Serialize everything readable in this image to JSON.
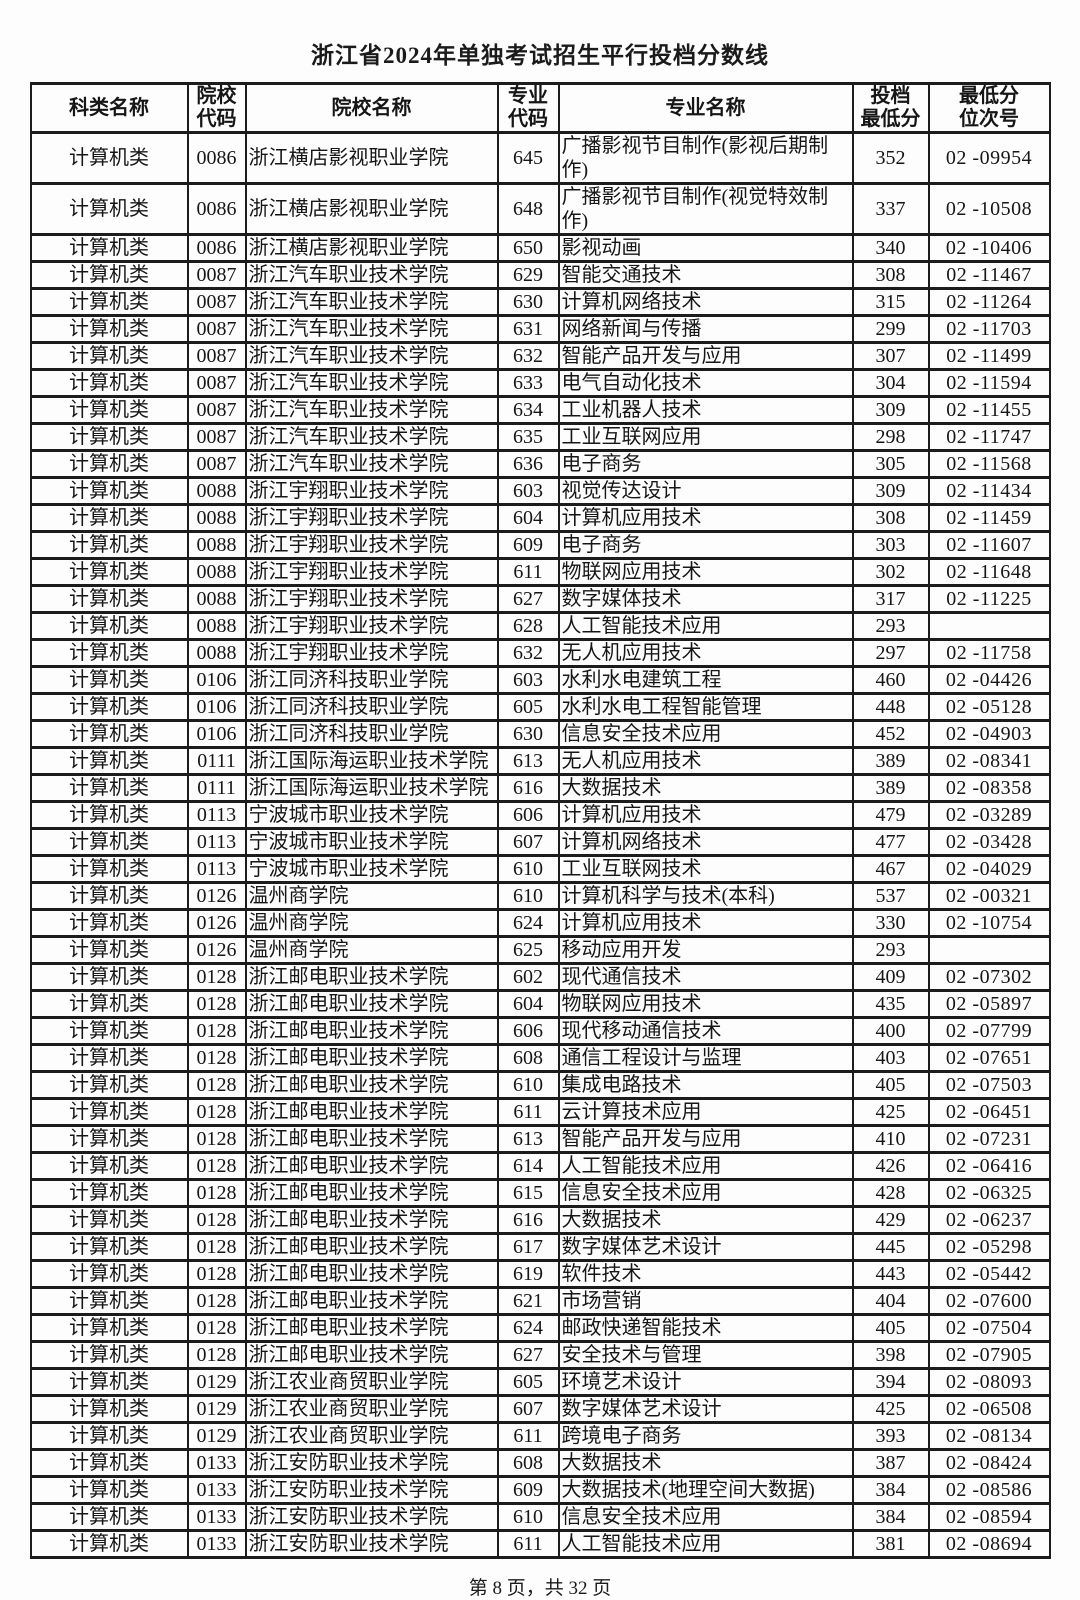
{
  "page": {
    "title": "浙江省2024年单独考试招生平行投档分数线",
    "footer": "第 8 页，共 32 页"
  },
  "table": {
    "headers": [
      "科类名称",
      "院校\n代码",
      "院校名称",
      "专业\n代码",
      "专业名称",
      "投档\n最低分",
      "最低分\n位次号"
    ],
    "rows": [
      [
        "计算机类",
        "0086",
        "浙江横店影视职业学院",
        "645",
        "广播影视节目制作(影视后期制作)",
        "352",
        "02 -09954"
      ],
      [
        "计算机类",
        "0086",
        "浙江横店影视职业学院",
        "648",
        "广播影视节目制作(视觉特效制作)",
        "337",
        "02 -10508"
      ],
      [
        "计算机类",
        "0086",
        "浙江横店影视职业学院",
        "650",
        "影视动画",
        "340",
        "02 -10406"
      ],
      [
        "计算机类",
        "0087",
        "浙江汽车职业技术学院",
        "629",
        "智能交通技术",
        "308",
        "02 -11467"
      ],
      [
        "计算机类",
        "0087",
        "浙江汽车职业技术学院",
        "630",
        "计算机网络技术",
        "315",
        "02 -11264"
      ],
      [
        "计算机类",
        "0087",
        "浙江汽车职业技术学院",
        "631",
        "网络新闻与传播",
        "299",
        "02 -11703"
      ],
      [
        "计算机类",
        "0087",
        "浙江汽车职业技术学院",
        "632",
        "智能产品开发与应用",
        "307",
        "02 -11499"
      ],
      [
        "计算机类",
        "0087",
        "浙江汽车职业技术学院",
        "633",
        "电气自动化技术",
        "304",
        "02 -11594"
      ],
      [
        "计算机类",
        "0087",
        "浙江汽车职业技术学院",
        "634",
        "工业机器人技术",
        "309",
        "02 -11455"
      ],
      [
        "计算机类",
        "0087",
        "浙江汽车职业技术学院",
        "635",
        "工业互联网应用",
        "298",
        "02 -11747"
      ],
      [
        "计算机类",
        "0087",
        "浙江汽车职业技术学院",
        "636",
        "电子商务",
        "305",
        "02 -11568"
      ],
      [
        "计算机类",
        "0088",
        "浙江宇翔职业技术学院",
        "603",
        "视觉传达设计",
        "309",
        "02 -11434"
      ],
      [
        "计算机类",
        "0088",
        "浙江宇翔职业技术学院",
        "604",
        "计算机应用技术",
        "308",
        "02 -11459"
      ],
      [
        "计算机类",
        "0088",
        "浙江宇翔职业技术学院",
        "609",
        "电子商务",
        "303",
        "02 -11607"
      ],
      [
        "计算机类",
        "0088",
        "浙江宇翔职业技术学院",
        "611",
        "物联网应用技术",
        "302",
        "02 -11648"
      ],
      [
        "计算机类",
        "0088",
        "浙江宇翔职业技术学院",
        "627",
        "数字媒体技术",
        "317",
        "02 -11225"
      ],
      [
        "计算机类",
        "0088",
        "浙江宇翔职业技术学院",
        "628",
        "人工智能技术应用",
        "293",
        ""
      ],
      [
        "计算机类",
        "0088",
        "浙江宇翔职业技术学院",
        "632",
        "无人机应用技术",
        "297",
        "02 -11758"
      ],
      [
        "计算机类",
        "0106",
        "浙江同济科技职业学院",
        "603",
        "水利水电建筑工程",
        "460",
        "02 -04426"
      ],
      [
        "计算机类",
        "0106",
        "浙江同济科技职业学院",
        "605",
        "水利水电工程智能管理",
        "448",
        "02 -05128"
      ],
      [
        "计算机类",
        "0106",
        "浙江同济科技职业学院",
        "630",
        "信息安全技术应用",
        "452",
        "02 -04903"
      ],
      [
        "计算机类",
        "0111",
        "浙江国际海运职业技术学院",
        "613",
        "无人机应用技术",
        "389",
        "02 -08341"
      ],
      [
        "计算机类",
        "0111",
        "浙江国际海运职业技术学院",
        "616",
        "大数据技术",
        "389",
        "02 -08358"
      ],
      [
        "计算机类",
        "0113",
        "宁波城市职业技术学院",
        "606",
        "计算机应用技术",
        "479",
        "02 -03289"
      ],
      [
        "计算机类",
        "0113",
        "宁波城市职业技术学院",
        "607",
        "计算机网络技术",
        "477",
        "02 -03428"
      ],
      [
        "计算机类",
        "0113",
        "宁波城市职业技术学院",
        "610",
        "工业互联网技术",
        "467",
        "02 -04029"
      ],
      [
        "计算机类",
        "0126",
        "温州商学院",
        "610",
        "计算机科学与技术(本科)",
        "537",
        "02 -00321"
      ],
      [
        "计算机类",
        "0126",
        "温州商学院",
        "624",
        "计算机应用技术",
        "330",
        "02 -10754"
      ],
      [
        "计算机类",
        "0126",
        "温州商学院",
        "625",
        "移动应用开发",
        "293",
        ""
      ],
      [
        "计算机类",
        "0128",
        "浙江邮电职业技术学院",
        "602",
        "现代通信技术",
        "409",
        "02 -07302"
      ],
      [
        "计算机类",
        "0128",
        "浙江邮电职业技术学院",
        "604",
        "物联网应用技术",
        "435",
        "02 -05897"
      ],
      [
        "计算机类",
        "0128",
        "浙江邮电职业技术学院",
        "606",
        "现代移动通信技术",
        "400",
        "02 -07799"
      ],
      [
        "计算机类",
        "0128",
        "浙江邮电职业技术学院",
        "608",
        "通信工程设计与监理",
        "403",
        "02 -07651"
      ],
      [
        "计算机类",
        "0128",
        "浙江邮电职业技术学院",
        "610",
        "集成电路技术",
        "405",
        "02 -07503"
      ],
      [
        "计算机类",
        "0128",
        "浙江邮电职业技术学院",
        "611",
        "云计算技术应用",
        "425",
        "02 -06451"
      ],
      [
        "计算机类",
        "0128",
        "浙江邮电职业技术学院",
        "613",
        "智能产品开发与应用",
        "410",
        "02 -07231"
      ],
      [
        "计算机类",
        "0128",
        "浙江邮电职业技术学院",
        "614",
        "人工智能技术应用",
        "426",
        "02 -06416"
      ],
      [
        "计算机类",
        "0128",
        "浙江邮电职业技术学院",
        "615",
        "信息安全技术应用",
        "428",
        "02 -06325"
      ],
      [
        "计算机类",
        "0128",
        "浙江邮电职业技术学院",
        "616",
        "大数据技术",
        "429",
        "02 -06237"
      ],
      [
        "计算机类",
        "0128",
        "浙江邮电职业技术学院",
        "617",
        "数字媒体艺术设计",
        "445",
        "02 -05298"
      ],
      [
        "计算机类",
        "0128",
        "浙江邮电职业技术学院",
        "619",
        "软件技术",
        "443",
        "02 -05442"
      ],
      [
        "计算机类",
        "0128",
        "浙江邮电职业技术学院",
        "621",
        "市场营销",
        "404",
        "02 -07600"
      ],
      [
        "计算机类",
        "0128",
        "浙江邮电职业技术学院",
        "624",
        "邮政快递智能技术",
        "405",
        "02 -07504"
      ],
      [
        "计算机类",
        "0128",
        "浙江邮电职业技术学院",
        "627",
        "安全技术与管理",
        "398",
        "02 -07905"
      ],
      [
        "计算机类",
        "0129",
        "浙江农业商贸职业学院",
        "605",
        "环境艺术设计",
        "394",
        "02 -08093"
      ],
      [
        "计算机类",
        "0129",
        "浙江农业商贸职业学院",
        "607",
        "数字媒体艺术设计",
        "425",
        "02 -06508"
      ],
      [
        "计算机类",
        "0129",
        "浙江农业商贸职业学院",
        "611",
        "跨境电子商务",
        "393",
        "02 -08134"
      ],
      [
        "计算机类",
        "0133",
        "浙江安防职业技术学院",
        "608",
        "大数据技术",
        "387",
        "02 -08424"
      ],
      [
        "计算机类",
        "0133",
        "浙江安防职业技术学院",
        "609",
        "大数据技术(地理空间大数据)",
        "384",
        "02 -08586"
      ],
      [
        "计算机类",
        "0133",
        "浙江安防职业技术学院",
        "610",
        "信息安全技术应用",
        "384",
        "02 -08594"
      ],
      [
        "计算机类",
        "0133",
        "浙江安防职业技术学院",
        "611",
        "人工智能技术应用",
        "381",
        "02 -08694"
      ]
    ]
  }
}
